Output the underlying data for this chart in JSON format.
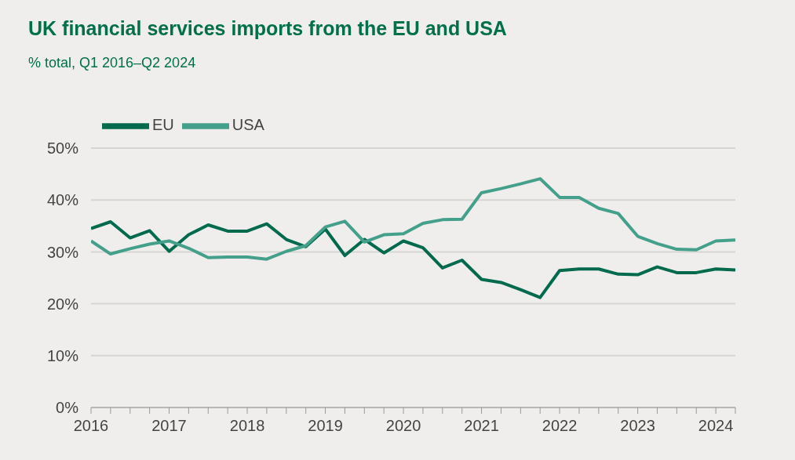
{
  "chart_data": {
    "type": "line",
    "title": "UK financial services imports from the EU and USA",
    "subtitle": "% total, Q1 2016–Q2 2024",
    "x": [
      2016,
      2016.25,
      2016.5,
      2016.75,
      2017,
      2017.25,
      2017.5,
      2017.75,
      2018,
      2018.25,
      2018.5,
      2018.75,
      2019,
      2019.25,
      2019.5,
      2019.75,
      2020,
      2020.25,
      2020.5,
      2020.75,
      2021,
      2021.25,
      2021.5,
      2021.75,
      2022,
      2022.25,
      2022.5,
      2022.75,
      2023,
      2023.25,
      2023.5,
      2023.75,
      2024,
      2024.25
    ],
    "series": [
      {
        "name": "EU",
        "color": "#006a4d",
        "values": [
          34.5,
          35.8,
          32.7,
          34.1,
          30.1,
          33.3,
          35.2,
          34.0,
          34.0,
          35.4,
          32.4,
          31.0,
          34.4,
          29.3,
          32.4,
          29.8,
          32.1,
          30.8,
          26.9,
          28.4,
          24.7,
          24.1,
          22.7,
          21.2,
          26.4,
          26.7,
          26.7,
          25.7,
          25.6,
          27.1,
          26.0,
          26.0,
          26.7,
          26.5
        ]
      },
      {
        "name": "USA",
        "color": "#44a08a",
        "values": [
          32.1,
          29.6,
          30.6,
          31.5,
          32.1,
          30.7,
          28.9,
          29.0,
          29.0,
          28.6,
          30.1,
          31.2,
          34.8,
          35.9,
          31.9,
          33.3,
          33.5,
          35.5,
          36.2,
          36.3,
          41.4,
          42.2,
          43.1,
          44.1,
          40.5,
          40.5,
          38.4,
          37.4,
          33.0,
          31.6,
          30.5,
          30.4,
          32.1,
          32.3
        ]
      }
    ],
    "xlim": [
      2016,
      2024.25
    ],
    "xticks": [
      2016,
      {
        "value": 2016.25,
        "label": null
      },
      {
        "value": 2016.5,
        "label": null
      },
      {
        "value": 2016.75,
        "label": null
      },
      2017,
      {
        "value": 2017.25,
        "label": null
      },
      {
        "value": 2017.5,
        "label": null
      },
      {
        "value": 2017.75,
        "label": null
      },
      2018,
      {
        "value": 2018.25,
        "label": null
      },
      {
        "value": 2018.5,
        "label": null
      },
      {
        "value": 2018.75,
        "label": null
      },
      2019,
      {
        "value": 2019.25,
        "label": null
      },
      {
        "value": 2019.5,
        "label": null
      },
      {
        "value": 2019.75,
        "label": null
      },
      2020,
      {
        "value": 2020.25,
        "label": null
      },
      {
        "value": 2020.5,
        "label": null
      },
      {
        "value": 2020.75,
        "label": null
      },
      2021,
      {
        "value": 2021.25,
        "label": null
      },
      {
        "value": 2021.5,
        "label": null
      },
      {
        "value": 2021.75,
        "label": null
      },
      2022,
      {
        "value": 2022.25,
        "label": null
      },
      {
        "value": 2022.5,
        "label": null
      },
      {
        "value": 2022.75,
        "label": null
      },
      2023,
      {
        "value": 2023.25,
        "label": null
      },
      {
        "value": 2023.5,
        "label": null
      },
      {
        "value": 2023.75,
        "label": null
      },
      2024,
      {
        "value": 2024.25,
        "label": null
      }
    ],
    "ylim": [
      0,
      50
    ],
    "yticks": [
      {
        "value": 0,
        "label": "0%"
      },
      {
        "value": 10,
        "label": "10%"
      },
      {
        "value": 20,
        "label": "20%"
      },
      {
        "value": 30,
        "label": "30%"
      },
      {
        "value": 40,
        "label": "40%"
      },
      {
        "value": 50,
        "label": "50%"
      }
    ],
    "grid": "y",
    "legend": "top left",
    "marker": "none",
    "line_style": "solid"
  }
}
